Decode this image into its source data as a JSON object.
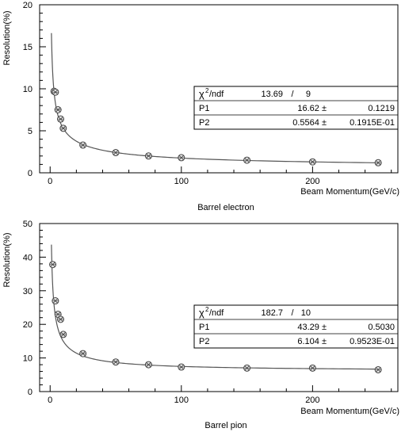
{
  "chart_data": [
    {
      "type": "scatter",
      "xlabel": "Beam Momentum(GeV/c)",
      "ylabel": "Resolution(%)",
      "caption": "Barrel electron",
      "xlim": [
        -8,
        265
      ],
      "ylim": [
        0,
        20
      ],
      "xticks": [
        0,
        100,
        200
      ],
      "yticks": [
        0,
        5,
        10,
        15,
        20
      ],
      "fit": {
        "p1": 16.62,
        "p2": 0.5564,
        "xmin": 1,
        "xmax": 250
      },
      "stats": {
        "chi2_label": "/ndf",
        "chi2": "13.69",
        "sep": "/",
        "ndf": "9",
        "rows": [
          {
            "name": "P1",
            "value": "16.62 ±",
            "error": "0.1219"
          },
          {
            "name": "P2",
            "value": "0.5564 ±",
            "error": "0.1915E-01"
          }
        ]
      },
      "series": [
        {
          "x": [
            3,
            4,
            6,
            8,
            10,
            25,
            50,
            75,
            100,
            150,
            200,
            250
          ],
          "y": [
            9.7,
            9.6,
            7.5,
            6.4,
            5.3,
            3.3,
            2.4,
            2.0,
            1.8,
            1.5,
            1.3,
            1.2
          ]
        }
      ]
    },
    {
      "type": "scatter",
      "xlabel": "Beam Momentum(GeV/c)",
      "ylabel": "Resolution(%)",
      "caption": "Barrel pion",
      "xlim": [
        -8,
        265
      ],
      "ylim": [
        0,
        50
      ],
      "xticks": [
        0,
        100,
        200
      ],
      "yticks": [
        0,
        10,
        20,
        30,
        40,
        50
      ],
      "fit": {
        "p1": 43.29,
        "p2": 6.104,
        "xmin": 1,
        "xmax": 250
      },
      "stats": {
        "chi2_label": "/ndf",
        "chi2": "182.7",
        "sep": "/",
        "ndf": "10",
        "rows": [
          {
            "name": "P1",
            "value": "43.29 ±",
            "error": "0.5030"
          },
          {
            "name": "P2",
            "value": "6.104 ±",
            "error": "0.9523E-01"
          }
        ]
      },
      "series": [
        {
          "x": [
            2,
            4,
            6,
            8,
            10,
            25,
            50,
            75,
            100,
            150,
            200,
            250
          ],
          "y": [
            37.8,
            27.0,
            23.0,
            21.5,
            17.0,
            11.3,
            8.8,
            8.0,
            7.3,
            7.0,
            7.0,
            6.5
          ]
        }
      ]
    }
  ]
}
